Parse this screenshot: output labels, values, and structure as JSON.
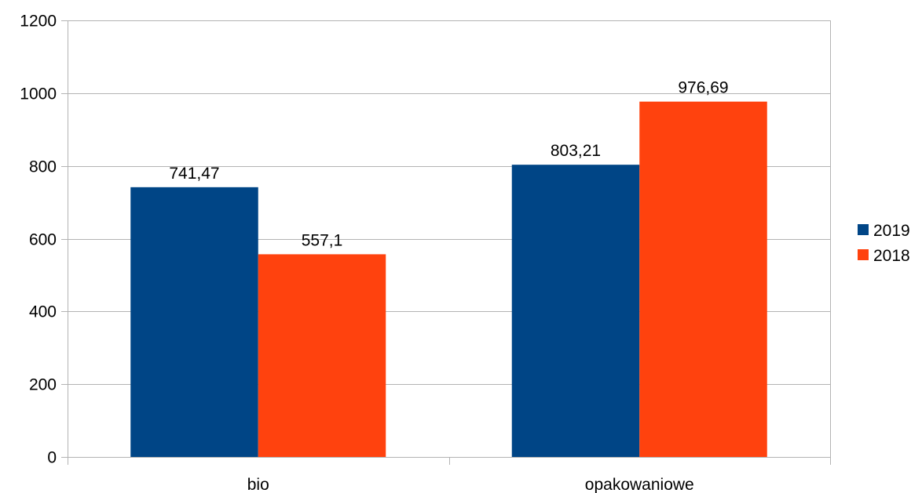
{
  "chart_data": {
    "type": "bar",
    "categories": [
      "bio",
      "opakowaniowe"
    ],
    "series": [
      {
        "name": "2019",
        "values": [
          741.47,
          803.21
        ],
        "labels": [
          "741,47",
          "803,21"
        ],
        "color": "#004586"
      },
      {
        "name": "2018",
        "values": [
          557.1,
          976.69
        ],
        "labels": [
          "557,1",
          "976,69"
        ],
        "color": "#ff420e"
      }
    ],
    "ylim": [
      0,
      1200
    ],
    "yticks": [
      "0",
      "200",
      "400",
      "600",
      "800",
      "1000",
      "1200"
    ],
    "ytick_values": [
      0,
      200,
      400,
      600,
      800,
      1000,
      1200
    ],
    "grid": true,
    "legend_position": "right",
    "title": "",
    "xlabel": "",
    "ylabel": ""
  },
  "colors": {
    "grid": "#b3b3b3",
    "axis": "#b3b3b3",
    "text": "#000000"
  }
}
